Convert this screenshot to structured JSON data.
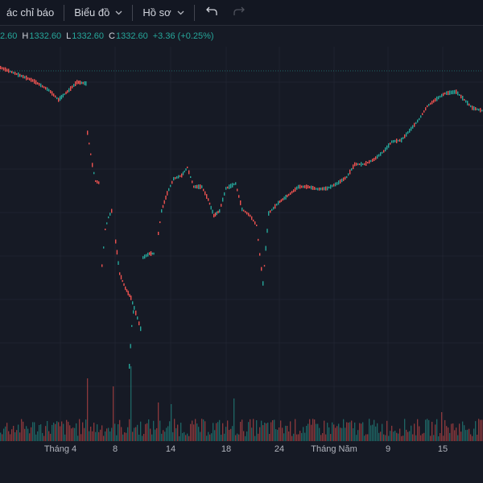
{
  "toolbar": {
    "indicators_label": "ác chỉ báo",
    "chart_label": "Biểu đồ",
    "profile_label": "Hồ sơ"
  },
  "legend": {
    "open_value": "2.60",
    "high_label": "H",
    "high_value": "1332.60",
    "low_label": "L",
    "low_value": "1332.60",
    "close_label": "C",
    "close_value": "1332.60",
    "change": "+3.36 (+0.25%)"
  },
  "colors": {
    "background": "#161a25",
    "up": "#26a69a",
    "down": "#ef5350"
  },
  "time_axis": {
    "labels": [
      "Tháng 4",
      "8",
      "14",
      "18",
      "24",
      "Tháng Năm",
      "9",
      "15"
    ]
  },
  "chart_data": {
    "type": "candlestick",
    "x_labels": [
      "Tháng 4",
      "8",
      "14",
      "18",
      "24",
      "Tháng Năm",
      "9",
      "15"
    ],
    "last_close": 1332.6,
    "change": 3.36,
    "change_percent": 0.25,
    "grid": true
  }
}
